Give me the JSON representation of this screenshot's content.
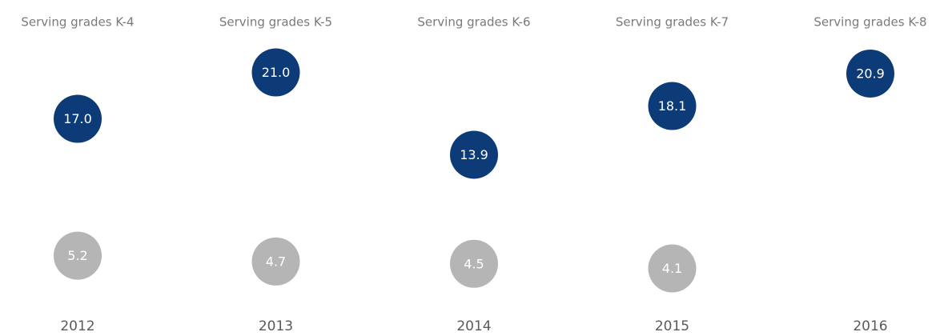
{
  "chart_data": {
    "type": "dot",
    "categories": [
      "2012",
      "2013",
      "2014",
      "2015",
      "2016"
    ],
    "column_labels": [
      "Serving grades K-4",
      "Serving grades K-5",
      "Serving grades K-6",
      "Serving grades K-7",
      "Serving grades K-8"
    ],
    "series": [
      {
        "color": "#0d3b78",
        "values": [
          17.0,
          21.0,
          13.9,
          18.1,
          20.9
        ],
        "value_labels": [
          "17.0",
          "21.0",
          "13.9",
          "18.1",
          "20.9"
        ]
      },
      {
        "color": "#b5b5b5",
        "values": [
          5.2,
          4.7,
          4.5,
          4.1,
          null
        ]
      }
    ]
  }
}
